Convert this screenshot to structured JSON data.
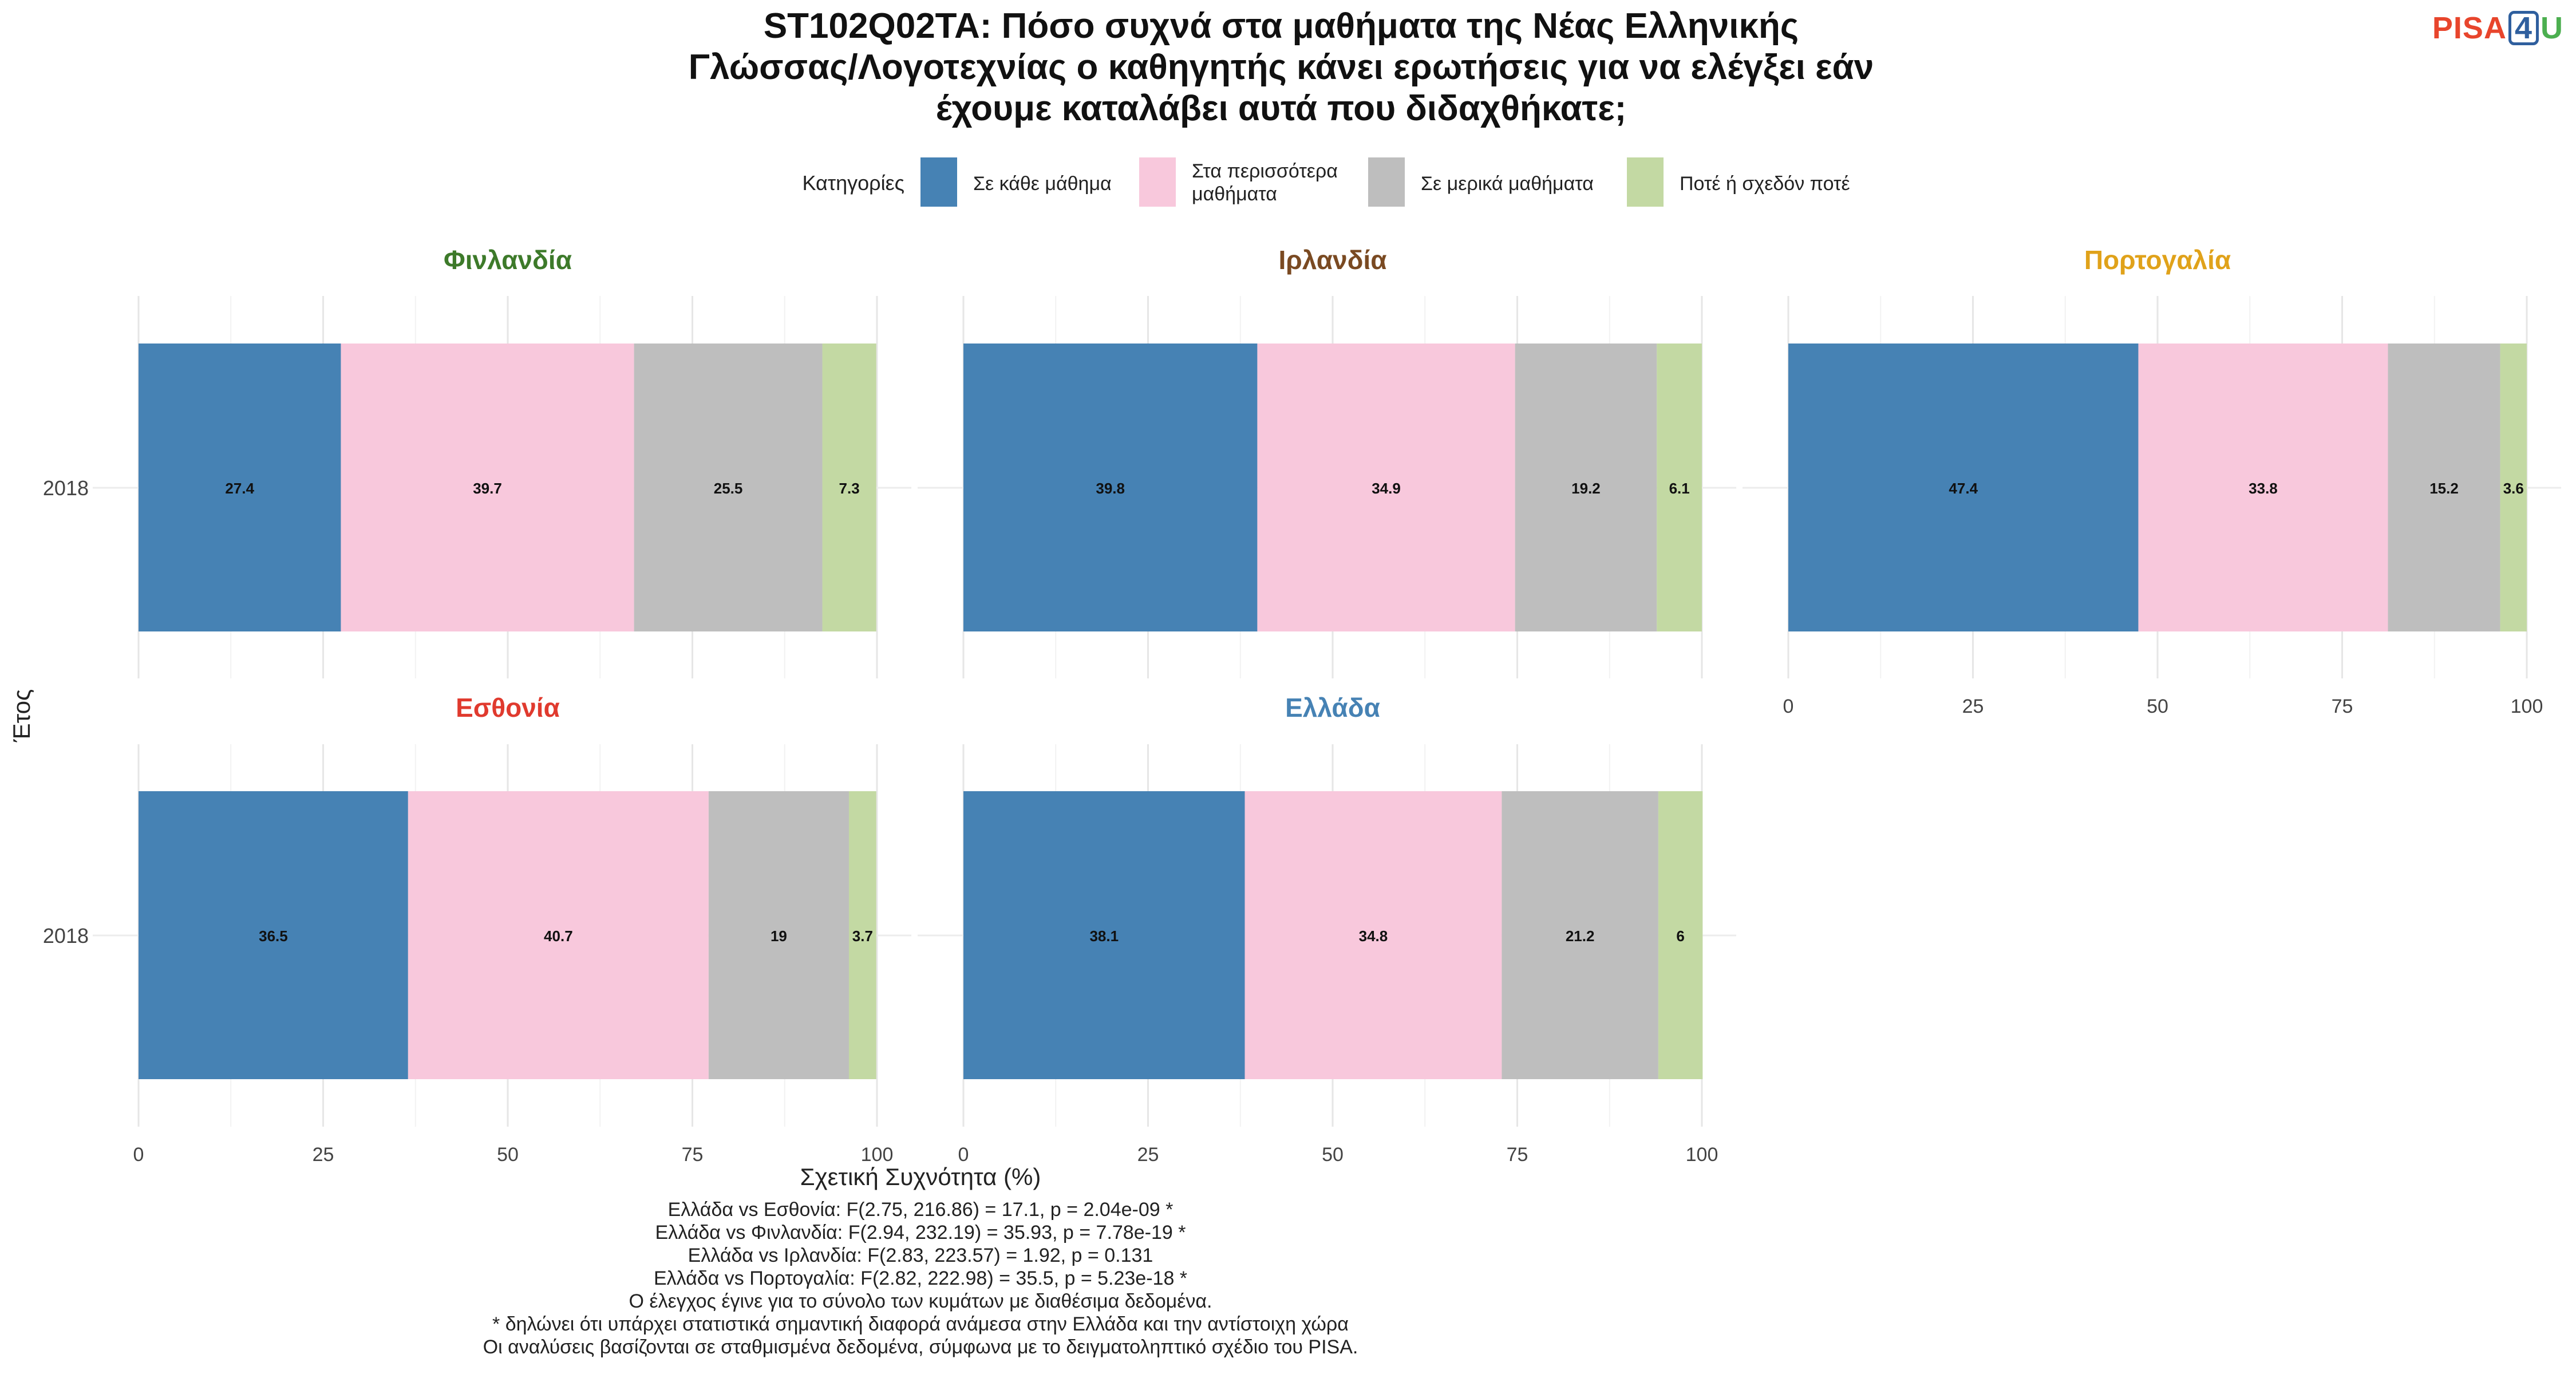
{
  "title_lines": [
    "ST102Q02TA: Πόσο συχνά στα μαθήματα της Νέας Ελληνικής",
    "Γλώσσας/Λογοτεχνίας ο καθηγητής κάνει ερωτήσεις για να ελέγξει εάν",
    "έχουμε καταλάβει αυτά που διδαχθήκατε;"
  ],
  "logo": {
    "p": "PISA",
    "four": "4",
    "u": "U"
  },
  "legend": {
    "title": "Κατηγορίες",
    "placement": "top",
    "items": [
      {
        "label_lines": [
          "Σε κάθε μάθημα"
        ],
        "color": "#4682b4"
      },
      {
        "label_lines": [
          "Στα περισσότερα",
          "μαθήματα"
        ],
        "color": "#f8c8dc"
      },
      {
        "label_lines": [
          "Σε μερικά μαθήματα"
        ],
        "color": "#bebebe"
      },
      {
        "label_lines": [
          "Ποτέ ή σχεδόν ποτέ"
        ],
        "color": "#c3d9a3"
      }
    ]
  },
  "chart_data": {
    "type": "bar",
    "orientation": "horizontal",
    "stacked": true,
    "xlabel": "Σχετική Συχνότητα (%)",
    "ylabel": "Έτος",
    "xlim": [
      0,
      100
    ],
    "xticks": [
      0,
      25,
      50,
      75,
      100
    ],
    "grid": true,
    "category": "2018",
    "series_names": [
      "Σε κάθε μάθημα",
      "Στα περισσότερα μαθήματα",
      "Σε μερικά μαθήματα",
      "Ποτέ ή σχεδόν ποτέ"
    ],
    "panels": [
      {
        "name": "Φινλανδία",
        "color": "#3d7a2a",
        "values": [
          27.4,
          39.7,
          25.5,
          7.3
        ],
        "labels": [
          "27.4",
          "39.7",
          "25.5",
          "7.3"
        ]
      },
      {
        "name": "Ιρλανδία",
        "color": "#7a4a22",
        "values": [
          39.8,
          34.9,
          19.2,
          6.1
        ],
        "labels": [
          "39.8",
          "34.9",
          "19.2",
          "6.1"
        ]
      },
      {
        "name": "Πορτογαλία",
        "color": "#e0a21a",
        "values": [
          47.4,
          33.8,
          15.2,
          3.6
        ],
        "labels": [
          "47.4",
          "33.8",
          "15.2",
          "3.6"
        ]
      },
      {
        "name": "Εσθονία",
        "color": "#e03a2e",
        "values": [
          36.5,
          40.7,
          19.0,
          3.7
        ],
        "labels": [
          "36.5",
          "40.7",
          "19",
          "3.7"
        ]
      },
      {
        "name": "Ελλάδα",
        "color": "#4682b4",
        "values": [
          38.1,
          34.8,
          21.2,
          6.0
        ],
        "labels": [
          "38.1",
          "34.8",
          "21.2",
          "6"
        ]
      }
    ]
  },
  "footnotes": [
    "Ελλάδα vs Εσθονία: F(2.75, 216.86) = 17.1, p = 2.04e-09 *",
    "Ελλάδα vs Φινλανδία: F(2.94, 232.19) = 35.93, p = 7.78e-19 *",
    "Ελλάδα vs Ιρλανδία: F(2.83, 223.57) = 1.92, p = 0.131",
    "Ελλάδα vs Πορτογαλία: F(2.82, 222.98) = 35.5, p = 5.23e-18 *",
    "Ο έλεγχος έγινε για το σύνολο των κυμάτων με διαθέσιμα δεδομένα.",
    "* δηλώνει ότι υπάρχει στατιστικά σημαντική διαφορά ανάμεσα στην Ελλάδα και την αντίστοιχη χώρα",
    "Οι αναλύσεις βασίζονται σε σταθμισμένα δεδομένα, σύμφωνα με το δειγματοληπτικό σχέδιο του PISA."
  ]
}
